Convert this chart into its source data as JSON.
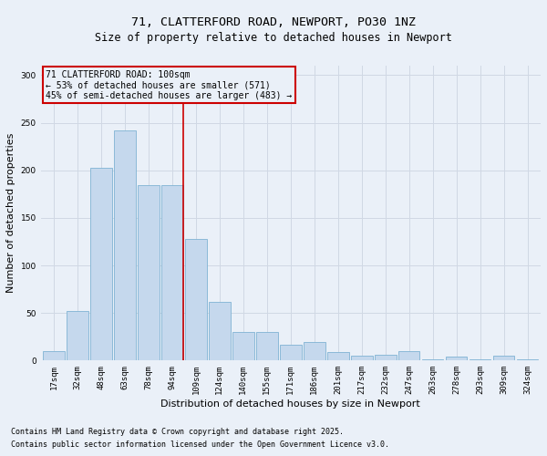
{
  "title1": "71, CLATTERFORD ROAD, NEWPORT, PO30 1NZ",
  "title2": "Size of property relative to detached houses in Newport",
  "xlabel": "Distribution of detached houses by size in Newport",
  "ylabel": "Number of detached properties",
  "categories": [
    "17sqm",
    "32sqm",
    "48sqm",
    "63sqm",
    "78sqm",
    "94sqm",
    "109sqm",
    "124sqm",
    "140sqm",
    "155sqm",
    "171sqm",
    "186sqm",
    "201sqm",
    "217sqm",
    "232sqm",
    "247sqm",
    "263sqm",
    "278sqm",
    "293sqm",
    "309sqm",
    "324sqm"
  ],
  "values": [
    10,
    52,
    203,
    242,
    184,
    184,
    128,
    62,
    30,
    30,
    17,
    20,
    9,
    5,
    6,
    10,
    1,
    4,
    1,
    5,
    1
  ],
  "bar_color": "#c5d8ed",
  "bar_edge_color": "#7fb3d3",
  "grid_color": "#d0d8e4",
  "background_color": "#eaf0f8",
  "vline_color": "#cc0000",
  "annotation_box_text": "71 CLATTERFORD ROAD: 100sqm\n← 53% of detached houses are smaller (571)\n45% of semi-detached houses are larger (483) →",
  "annotation_box_color": "#cc0000",
  "footnote1": "Contains HM Land Registry data © Crown copyright and database right 2025.",
  "footnote2": "Contains public sector information licensed under the Open Government Licence v3.0.",
  "ylim": [
    0,
    310
  ],
  "title1_fontsize": 9.5,
  "title2_fontsize": 8.5,
  "tick_fontsize": 6.5,
  "ylabel_fontsize": 8,
  "xlabel_fontsize": 8,
  "annotation_fontsize": 7,
  "footnote_fontsize": 6
}
